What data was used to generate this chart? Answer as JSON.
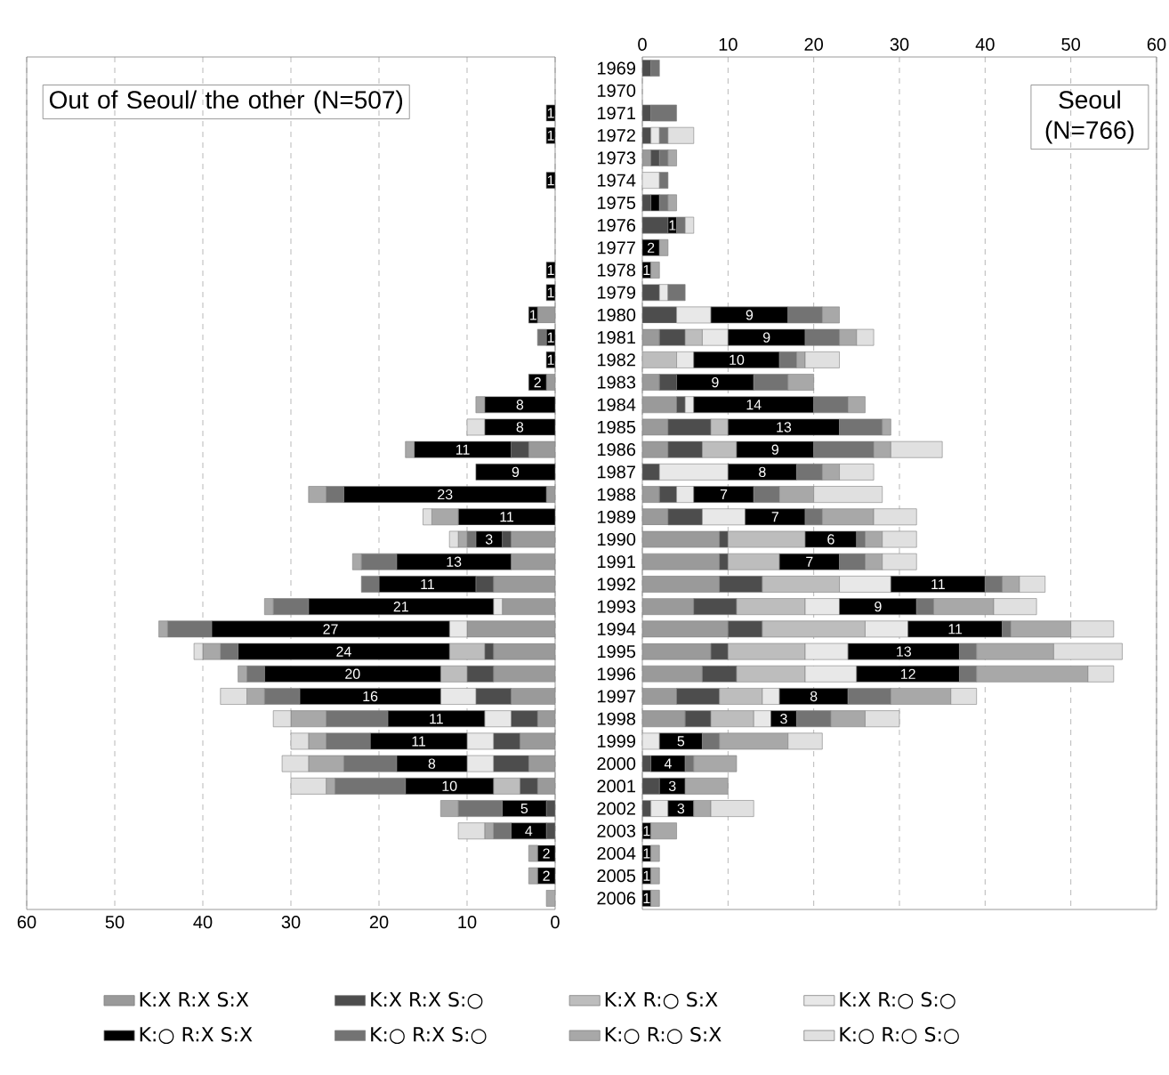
{
  "chart_data": [
    {
      "type": "bar",
      "orientation": "horizontal",
      "stacked": true,
      "title": "Out of Seoul/ the other (N=507)",
      "tick_labels": "x",
      "grid": "x",
      "legend": "bottom",
      "categories": [
        "1969",
        "1970",
        "1971",
        "1972",
        "1973",
        "1974",
        "1975",
        "1976",
        "1977",
        "1978",
        "1979",
        "1980",
        "1981",
        "1982",
        "1983",
        "1984",
        "1985",
        "1986",
        "1987",
        "1988",
        "1989",
        "1990",
        "1991",
        "1992",
        "1993",
        "1994",
        "1995",
        "1996",
        "1997",
        "1998",
        "1999",
        "2000",
        "2001",
        "2002",
        "2003",
        "2004",
        "2005",
        "2006"
      ],
      "xlim": [
        60,
        0
      ],
      "xticks": [
        0,
        10,
        20,
        30,
        40,
        50,
        60
      ],
      "series": [
        {
          "name": "K:X R:X S:X",
          "color": "#9a9a9a",
          "values": [
            null,
            null,
            null,
            null,
            null,
            null,
            null,
            null,
            null,
            null,
            null,
            2,
            null,
            null,
            1,
            null,
            null,
            3,
            null,
            1,
            null,
            5,
            5,
            7,
            6,
            10,
            7,
            7,
            5,
            2,
            4,
            3,
            2,
            null,
            null,
            null,
            null,
            null
          ]
        },
        {
          "name": "K:X R:X S:○",
          "color": "#4d4d4d",
          "values": [
            null,
            null,
            null,
            null,
            null,
            null,
            null,
            null,
            null,
            null,
            null,
            null,
            null,
            null,
            null,
            null,
            null,
            2,
            null,
            null,
            null,
            1,
            null,
            2,
            null,
            null,
            1,
            3,
            4,
            3,
            3,
            4,
            2,
            1,
            1,
            null,
            null,
            null
          ]
        },
        {
          "name": "K:X R:○ S:X",
          "color": "#bdbdbd",
          "values": [
            null,
            null,
            null,
            null,
            null,
            null,
            null,
            null,
            null,
            null,
            null,
            null,
            null,
            null,
            null,
            null,
            null,
            null,
            null,
            null,
            null,
            null,
            null,
            null,
            null,
            null,
            4,
            3,
            null,
            null,
            null,
            null,
            3,
            null,
            null,
            null,
            null,
            null
          ]
        },
        {
          "name": "K:X R:○ S:○",
          "color": "#e8e8e8",
          "values": [
            null,
            null,
            null,
            null,
            null,
            null,
            null,
            null,
            null,
            null,
            null,
            null,
            null,
            null,
            null,
            null,
            null,
            null,
            null,
            null,
            null,
            null,
            null,
            null,
            1,
            2,
            null,
            null,
            4,
            3,
            3,
            3,
            null,
            null,
            null,
            null,
            null,
            null
          ]
        },
        {
          "name": "K:○ R:X S:X",
          "color": "#000000",
          "values": [
            null,
            null,
            1,
            1,
            null,
            1,
            null,
            null,
            null,
            1,
            1,
            1,
            1,
            1,
            2,
            8,
            8,
            11,
            9,
            23,
            11,
            3,
            13,
            11,
            21,
            27,
            24,
            20,
            16,
            11,
            11,
            8,
            10,
            5,
            4,
            2,
            2,
            null
          ],
          "value_labels": [
            null,
            null,
            "1",
            "1",
            null,
            "1",
            null,
            null,
            null,
            "1",
            "1",
            "1",
            "1",
            "1",
            "2",
            "8",
            "8",
            "11",
            "9",
            "23",
            "11",
            "3",
            "13",
            "11",
            "21",
            "27",
            "24",
            "20",
            "16",
            "11",
            "11",
            "8",
            "10",
            "5",
            "4",
            "2",
            "2",
            null
          ]
        },
        {
          "name": "K:○ R:X S:○",
          "color": "#737373",
          "values": [
            null,
            null,
            null,
            null,
            null,
            null,
            null,
            null,
            null,
            null,
            null,
            null,
            1,
            null,
            null,
            null,
            null,
            null,
            null,
            2,
            null,
            1,
            4,
            2,
            4,
            5,
            2,
            2,
            4,
            7,
            5,
            6,
            8,
            5,
            2,
            null,
            null,
            null
          ]
        },
        {
          "name": "K:○ R:○ S:X",
          "color": "#a8a8a8",
          "values": [
            null,
            null,
            null,
            null,
            null,
            null,
            null,
            null,
            null,
            null,
            null,
            null,
            null,
            null,
            null,
            1,
            null,
            1,
            null,
            2,
            3,
            1,
            1,
            null,
            1,
            1,
            2,
            1,
            2,
            4,
            2,
            4,
            1,
            2,
            1,
            1,
            1,
            1
          ]
        },
        {
          "name": "K:○ R:○ S:○",
          "color": "#e0e0e0",
          "values": [
            null,
            null,
            null,
            null,
            null,
            null,
            null,
            null,
            null,
            null,
            null,
            null,
            null,
            null,
            null,
            null,
            2,
            null,
            null,
            null,
            1,
            1,
            null,
            null,
            null,
            null,
            1,
            null,
            3,
            2,
            2,
            3,
            4,
            null,
            3,
            null,
            null,
            null
          ]
        }
      ]
    },
    {
      "type": "bar",
      "orientation": "horizontal",
      "stacked": true,
      "title": "Seoul (N=766)",
      "grid": "x",
      "categories": [
        "1969",
        "1970",
        "1971",
        "1972",
        "1973",
        "1974",
        "1975",
        "1976",
        "1977",
        "1978",
        "1979",
        "1980",
        "1981",
        "1982",
        "1983",
        "1984",
        "1985",
        "1986",
        "1987",
        "1988",
        "1989",
        "1990",
        "1991",
        "1992",
        "1993",
        "1994",
        "1995",
        "1996",
        "1997",
        "1998",
        "1999",
        "2000",
        "2001",
        "2002",
        "2003",
        "2004",
        "2005",
        "2006"
      ],
      "xlim": [
        0,
        60
      ],
      "xticks": [
        0,
        10,
        20,
        30,
        40,
        50,
        60
      ],
      "series": [
        {
          "color": "#9a9a9a",
          "values": [
            null,
            null,
            null,
            null,
            1,
            null,
            null,
            null,
            null,
            null,
            null,
            null,
            2,
            null,
            2,
            4,
            3,
            3,
            null,
            2,
            3,
            9,
            9,
            9,
            6,
            10,
            8,
            7,
            4,
            5,
            null,
            null,
            null,
            null,
            null,
            null,
            null,
            null
          ]
        },
        {
          "color": "#4d4d4d",
          "values": [
            1,
            null,
            1,
            1,
            1,
            null,
            1,
            3,
            null,
            null,
            2,
            4,
            3,
            null,
            2,
            1,
            5,
            4,
            2,
            2,
            4,
            1,
            1,
            5,
            5,
            4,
            2,
            4,
            5,
            3,
            null,
            1,
            2,
            1,
            null,
            null,
            null,
            null
          ]
        },
        {
          "color": "#bdbdbd",
          "values": [
            null,
            null,
            null,
            null,
            null,
            null,
            null,
            null,
            null,
            null,
            null,
            null,
            2,
            4,
            null,
            null,
            2,
            4,
            null,
            null,
            null,
            9,
            6,
            9,
            8,
            12,
            9,
            8,
            5,
            5,
            null,
            null,
            null,
            null,
            null,
            null,
            null,
            null
          ]
        },
        {
          "color": "#e8e8e8",
          "values": [
            null,
            null,
            null,
            1,
            null,
            2,
            null,
            null,
            null,
            null,
            1,
            4,
            3,
            2,
            null,
            1,
            null,
            null,
            8,
            2,
            5,
            null,
            null,
            6,
            4,
            5,
            5,
            6,
            2,
            2,
            2,
            null,
            null,
            2,
            null,
            null,
            null,
            null
          ]
        },
        {
          "color": "#000000",
          "values": [
            null,
            null,
            null,
            null,
            null,
            null,
            1,
            1,
            2,
            1,
            null,
            9,
            9,
            10,
            9,
            14,
            13,
            9,
            8,
            7,
            7,
            6,
            7,
            11,
            9,
            11,
            13,
            12,
            8,
            3,
            5,
            4,
            3,
            3,
            1,
            1,
            1,
            1
          ],
          "value_labels": [
            null,
            null,
            null,
            null,
            null,
            null,
            null,
            "1",
            "2",
            "1",
            null,
            "9",
            "9",
            "10",
            "9",
            "14",
            "13",
            "9",
            "8",
            "7",
            "7",
            "6",
            "7",
            "11",
            "9",
            "11",
            "13",
            "12",
            "8",
            "3",
            "5",
            "4",
            "3",
            "3",
            "1",
            "1",
            "1",
            "1"
          ]
        },
        {
          "color": "#737373",
          "values": [
            1,
            null,
            3,
            1,
            1,
            1,
            1,
            1,
            null,
            null,
            2,
            4,
            4,
            2,
            4,
            4,
            5,
            7,
            3,
            3,
            2,
            1,
            3,
            2,
            2,
            1,
            2,
            2,
            5,
            4,
            2,
            1,
            null,
            null,
            null,
            null,
            null,
            null
          ]
        },
        {
          "color": "#a8a8a8",
          "values": [
            null,
            null,
            null,
            null,
            1,
            null,
            1,
            null,
            1,
            1,
            null,
            2,
            2,
            1,
            3,
            2,
            1,
            2,
            2,
            4,
            6,
            2,
            2,
            2,
            7,
            7,
            9,
            13,
            7,
            4,
            8,
            5,
            5,
            2,
            3,
            1,
            1,
            1
          ]
        },
        {
          "color": "#e0e0e0",
          "values": [
            null,
            null,
            null,
            3,
            null,
            null,
            null,
            1,
            null,
            null,
            null,
            null,
            2,
            4,
            null,
            null,
            null,
            6,
            4,
            8,
            5,
            4,
            4,
            3,
            5,
            5,
            8,
            3,
            3,
            4,
            4,
            null,
            null,
            5,
            null,
            null,
            null,
            null
          ]
        }
      ]
    }
  ]
}
